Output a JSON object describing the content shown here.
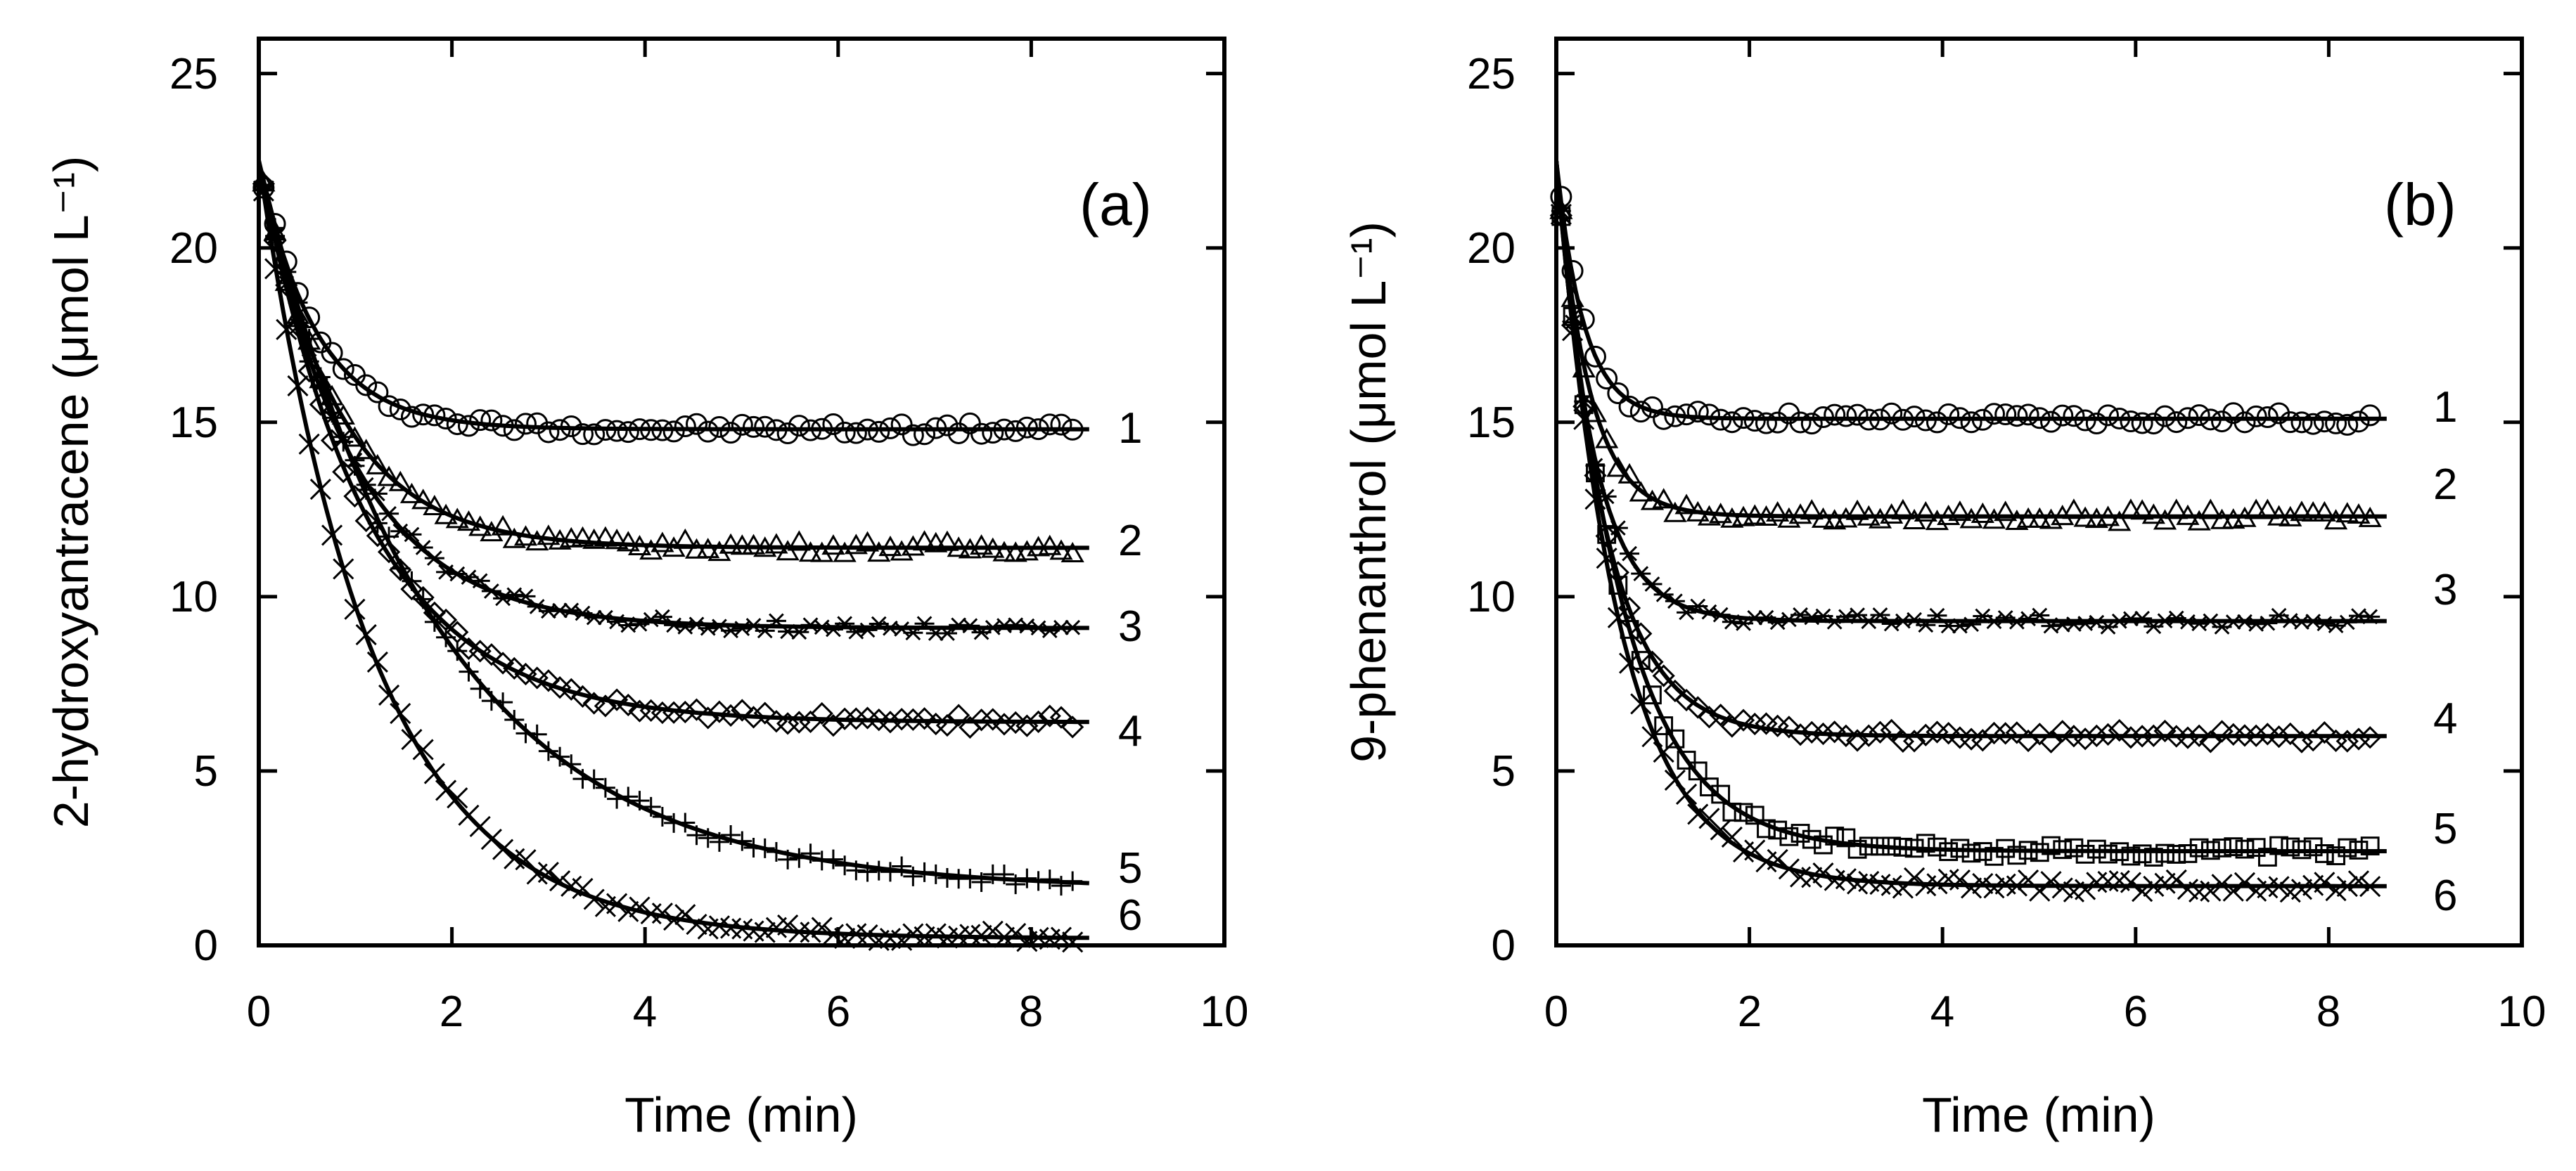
{
  "chart_data": [
    {
      "type": "scatter",
      "panel_label": "(a)",
      "xlabel": "Time (min)",
      "ylabel": "2-hydroxyantracene (μmol L⁻¹)",
      "xlim": [
        0,
        10
      ],
      "ylim": [
        0,
        26
      ],
      "xticks": [
        "0",
        "2",
        "4",
        "6",
        "8",
        "10"
      ],
      "yticks": [
        "0",
        "5",
        "10",
        "15",
        "20",
        "25"
      ],
      "series": [
        {
          "name": "1",
          "marker": "circle",
          "y0": 22.5,
          "plateau": 14.8,
          "rate": 1.7
        },
        {
          "name": "2",
          "marker": "triangle",
          "y0": 22.5,
          "plateau": 11.4,
          "rate": 1.25
        },
        {
          "name": "3",
          "marker": "star",
          "y0": 22.5,
          "plateau": 9.1,
          "rate": 1.05
        },
        {
          "name": "4",
          "marker": "diamond",
          "y0": 22.5,
          "plateau": 6.4,
          "rate": 0.9
        },
        {
          "name": "5",
          "marker": "plus",
          "y0": 22.5,
          "plateau": 1.6,
          "rate": 0.55
        },
        {
          "name": "6",
          "marker": "cross",
          "y0": 22.5,
          "plateau": 0.2,
          "rate": 0.85
        }
      ]
    },
    {
      "type": "scatter",
      "panel_label": "(b)",
      "xlabel": "Time (min)",
      "ylabel": "9-phenanthrol (μmol L⁻¹)",
      "xlim": [
        0,
        10
      ],
      "ylim": [
        0,
        26
      ],
      "xticks": [
        "0",
        "2",
        "4",
        "6",
        "8",
        "10"
      ],
      "yticks": [
        "0",
        "5",
        "10",
        "15",
        "20",
        "25"
      ],
      "series": [
        {
          "name": "1",
          "marker": "circle",
          "y0": 22.5,
          "plateau": 15.1,
          "rate": 3.5
        },
        {
          "name": "2",
          "marker": "triangle",
          "y0": 22.5,
          "plateau": 12.3,
          "rate": 3.0
        },
        {
          "name": "3",
          "marker": "star",
          "y0": 22.5,
          "plateau": 9.3,
          "rate": 2.6
        },
        {
          "name": "4",
          "marker": "diamond",
          "y0": 22.5,
          "plateau": 6.0,
          "rate": 2.0
        },
        {
          "name": "5",
          "marker": "square",
          "y0": 22.5,
          "plateau": 2.7,
          "rate": 1.5
        },
        {
          "name": "6",
          "marker": "cross",
          "y0": 22.5,
          "plateau": 1.7,
          "rate": 1.55
        }
      ]
    }
  ]
}
